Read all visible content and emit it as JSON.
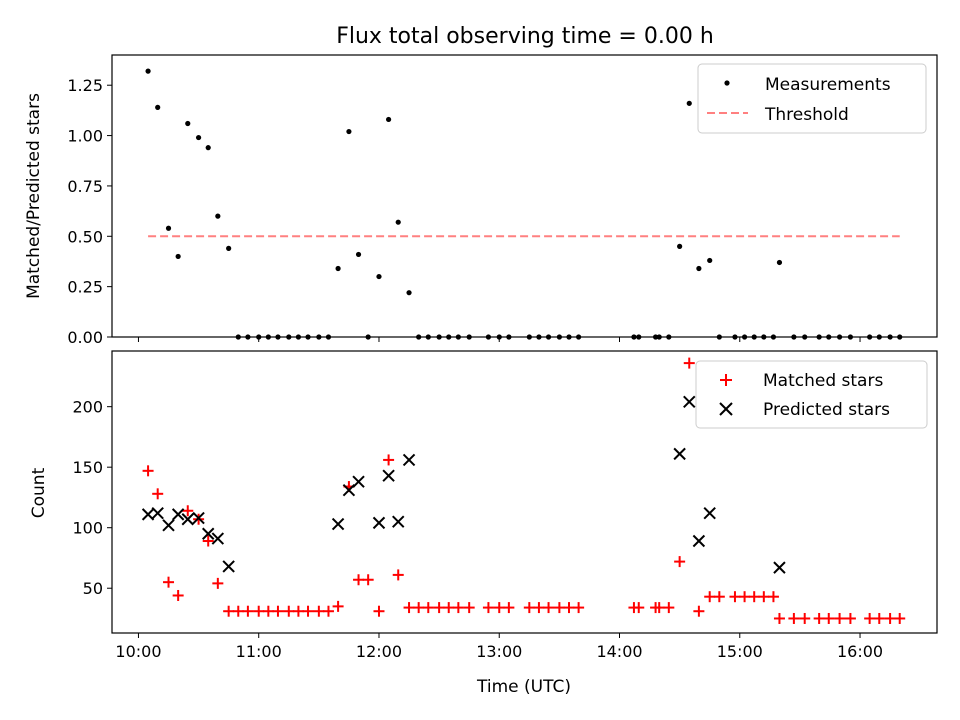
{
  "figure_title": "Flux total observing time = 0.00 h",
  "colors": {
    "measurement": "#000000",
    "threshold": "#ff8080",
    "matched": "#ff0000",
    "predicted": "#000000"
  },
  "chart_data": [
    {
      "type": "scatter",
      "title": "Flux total observing time = 0.00 h",
      "ylabel": "Matched/Predicted stars",
      "xlabel": "",
      "xlim": [
        9.78,
        16.64
      ],
      "ylim": [
        0,
        1.4
      ],
      "yticks": [
        0,
        0.25,
        0.5,
        0.75,
        1.0,
        1.25
      ],
      "ytick_labels": [
        "0.00",
        "0.25",
        "0.50",
        "0.75",
        "1.00",
        "1.25"
      ],
      "legend": {
        "position": "top-right",
        "entries": [
          "Measurements",
          "Threshold"
        ]
      },
      "series": [
        {
          "name": "Measurements",
          "marker": "dot",
          "points": [
            [
              10.08,
              1.32
            ],
            [
              10.16,
              1.14
            ],
            [
              10.25,
              0.54
            ],
            [
              10.33,
              0.4
            ],
            [
              10.41,
              1.06
            ],
            [
              10.5,
              0.99
            ],
            [
              10.58,
              0.94
            ],
            [
              10.66,
              0.6
            ],
            [
              10.75,
              0.44
            ],
            [
              10.83,
              0
            ],
            [
              10.91,
              0
            ],
            [
              11.0,
              0
            ],
            [
              11.08,
              0
            ],
            [
              11.16,
              0
            ],
            [
              11.25,
              0
            ],
            [
              11.33,
              0
            ],
            [
              11.41,
              0
            ],
            [
              11.5,
              0
            ],
            [
              11.58,
              0
            ],
            [
              11.66,
              0.34
            ],
            [
              11.75,
              1.02
            ],
            [
              11.83,
              0.41
            ],
            [
              11.91,
              0
            ],
            [
              12.0,
              0.3
            ],
            [
              12.08,
              1.08
            ],
            [
              12.16,
              0.57
            ],
            [
              12.25,
              0.22
            ],
            [
              12.33,
              0
            ],
            [
              12.41,
              0
            ],
            [
              12.5,
              0
            ],
            [
              12.58,
              0
            ],
            [
              12.66,
              0
            ],
            [
              12.75,
              0
            ],
            [
              12.91,
              0
            ],
            [
              13.0,
              0
            ],
            [
              13.08,
              0
            ],
            [
              13.25,
              0
            ],
            [
              13.33,
              0
            ],
            [
              13.41,
              0
            ],
            [
              13.5,
              0
            ],
            [
              13.58,
              0
            ],
            [
              13.66,
              0
            ],
            [
              14.12,
              0
            ],
            [
              14.16,
              0
            ],
            [
              14.3,
              0
            ],
            [
              14.33,
              0
            ],
            [
              14.41,
              0
            ],
            [
              14.5,
              0.45
            ],
            [
              14.58,
              1.16
            ],
            [
              14.66,
              0.34
            ],
            [
              14.75,
              0.38
            ],
            [
              14.83,
              0
            ],
            [
              14.96,
              0
            ],
            [
              15.04,
              0
            ],
            [
              15.12,
              0
            ],
            [
              15.2,
              0
            ],
            [
              15.28,
              0
            ],
            [
              15.33,
              0.37
            ],
            [
              15.45,
              0
            ],
            [
              15.54,
              0
            ],
            [
              15.66,
              0
            ],
            [
              15.74,
              0
            ],
            [
              15.83,
              0
            ],
            [
              15.92,
              0
            ],
            [
              16.08,
              0
            ],
            [
              16.16,
              0
            ],
            [
              16.25,
              0
            ],
            [
              16.33,
              0
            ]
          ]
        },
        {
          "name": "Threshold",
          "type": "line",
          "style": "dashed",
          "x": [
            10.08,
            16.33
          ],
          "y": [
            0.5,
            0.5
          ]
        }
      ]
    },
    {
      "type": "scatter",
      "ylabel": "Count",
      "xlabel": "Time (UTC)",
      "xlim": [
        9.78,
        16.64
      ],
      "ylim": [
        13,
        246
      ],
      "yticks": [
        50,
        100,
        150,
        200
      ],
      "ytick_labels": [
        "50",
        "100",
        "150",
        "200"
      ],
      "xticks": [
        10,
        11,
        12,
        13,
        14,
        15,
        16
      ],
      "xtick_labels": [
        "10:00",
        "11:00",
        "12:00",
        "13:00",
        "14:00",
        "15:00",
        "16:00"
      ],
      "legend": {
        "position": "top-right",
        "entries": [
          "Matched stars",
          "Predicted stars"
        ]
      },
      "series": [
        {
          "name": "Matched stars",
          "marker": "plus",
          "points": [
            [
              10.08,
              147
            ],
            [
              10.16,
              128
            ],
            [
              10.25,
              55
            ],
            [
              10.33,
              44
            ],
            [
              10.41,
              114
            ],
            [
              10.5,
              107
            ],
            [
              10.58,
              89
            ],
            [
              10.66,
              54
            ],
            [
              10.75,
              31
            ],
            [
              10.83,
              31
            ],
            [
              10.91,
              31
            ],
            [
              11.0,
              31
            ],
            [
              11.08,
              31
            ],
            [
              11.16,
              31
            ],
            [
              11.25,
              31
            ],
            [
              11.33,
              31
            ],
            [
              11.41,
              31
            ],
            [
              11.5,
              31
            ],
            [
              11.58,
              31
            ],
            [
              11.66,
              35
            ],
            [
              11.75,
              134
            ],
            [
              11.83,
              57
            ],
            [
              11.91,
              57
            ],
            [
              12.0,
              31
            ],
            [
              12.08,
              156
            ],
            [
              12.16,
              61
            ],
            [
              12.25,
              34
            ],
            [
              12.33,
              34
            ],
            [
              12.41,
              34
            ],
            [
              12.5,
              34
            ],
            [
              12.58,
              34
            ],
            [
              12.66,
              34
            ],
            [
              12.75,
              34
            ],
            [
              12.91,
              34
            ],
            [
              13.0,
              34
            ],
            [
              13.08,
              34
            ],
            [
              13.25,
              34
            ],
            [
              13.33,
              34
            ],
            [
              13.41,
              34
            ],
            [
              13.5,
              34
            ],
            [
              13.58,
              34
            ],
            [
              13.66,
              34
            ],
            [
              14.12,
              34
            ],
            [
              14.16,
              34
            ],
            [
              14.3,
              34
            ],
            [
              14.33,
              34
            ],
            [
              14.41,
              34
            ],
            [
              14.5,
              72
            ],
            [
              14.58,
              236
            ],
            [
              14.66,
              31
            ],
            [
              14.75,
              43
            ],
            [
              14.83,
              43
            ],
            [
              14.96,
              43
            ],
            [
              15.04,
              43
            ],
            [
              15.12,
              43
            ],
            [
              15.2,
              43
            ],
            [
              15.28,
              43
            ],
            [
              15.33,
              25
            ],
            [
              15.45,
              25
            ],
            [
              15.54,
              25
            ],
            [
              15.66,
              25
            ],
            [
              15.74,
              25
            ],
            [
              15.83,
              25
            ],
            [
              15.92,
              25
            ],
            [
              16.08,
              25
            ],
            [
              16.16,
              25
            ],
            [
              16.25,
              25
            ],
            [
              16.33,
              25
            ]
          ]
        },
        {
          "name": "Predicted stars",
          "marker": "cross",
          "points": [
            [
              10.08,
              111
            ],
            [
              10.16,
              112
            ],
            [
              10.25,
              102
            ],
            [
              10.33,
              111
            ],
            [
              10.41,
              107
            ],
            [
              10.5,
              108
            ],
            [
              10.58,
              95
            ],
            [
              10.66,
              91
            ],
            [
              10.75,
              68
            ],
            [
              11.66,
              103
            ],
            [
              11.75,
              131
            ],
            [
              11.83,
              138
            ],
            [
              12.0,
              104
            ],
            [
              12.08,
              143
            ],
            [
              12.16,
              105
            ],
            [
              12.25,
              156
            ],
            [
              14.5,
              161
            ],
            [
              14.58,
              204
            ],
            [
              14.66,
              89
            ],
            [
              14.75,
              112
            ],
            [
              15.33,
              67
            ]
          ]
        }
      ]
    }
  ]
}
